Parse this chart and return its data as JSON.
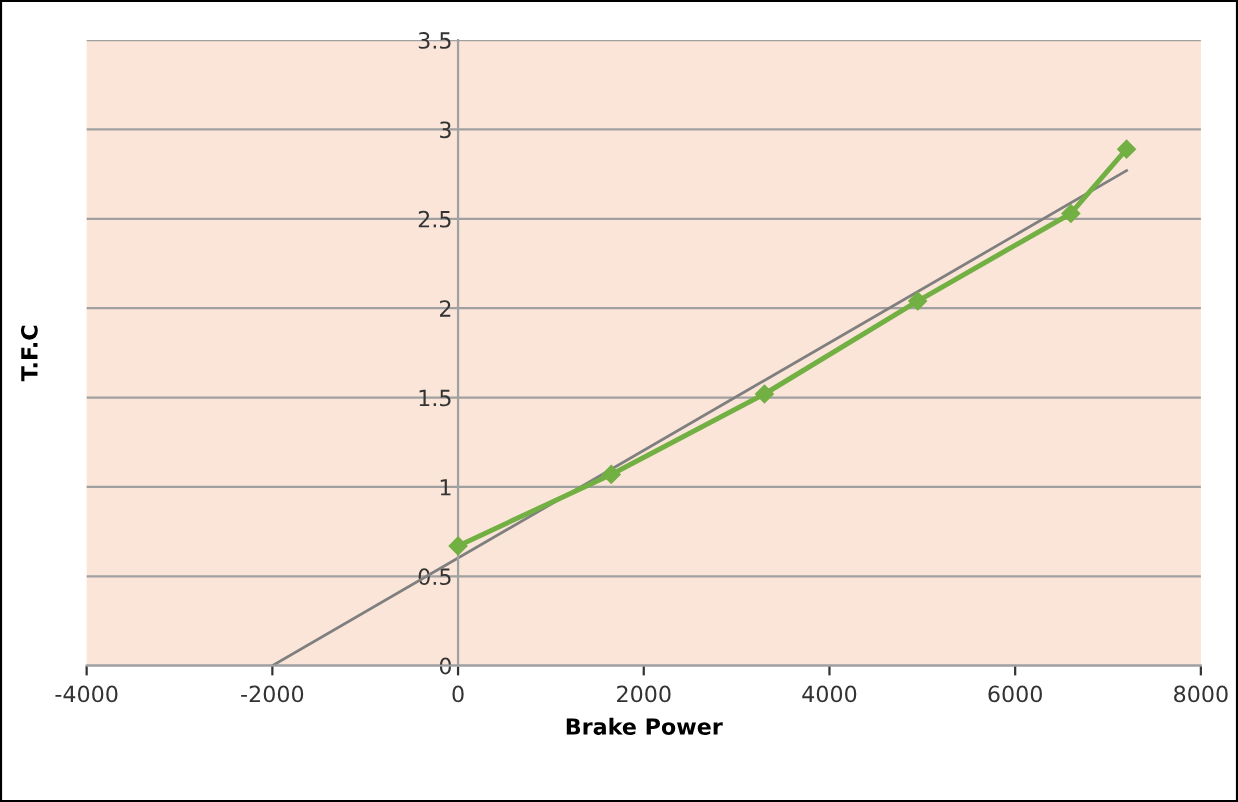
{
  "chart_data": {
    "type": "line",
    "xlabel": "Brake Power",
    "ylabel": "T.F.C",
    "series": [
      {
        "color": "#72b043",
        "marker": "diamond",
        "x": [
          0,
          1650,
          3300,
          4950,
          6600,
          7200
        ],
        "values": [
          0.67,
          1.07,
          1.52,
          2.04,
          2.53,
          2.89
        ]
      },
      {
        "color": "#7f7f7f",
        "marker": "none",
        "x": [
          -2000,
          7200
        ],
        "values": [
          0,
          2.77
        ]
      }
    ],
    "xlim": [
      -4000,
      8000
    ],
    "xticks": [
      -4000,
      -2000,
      0,
      2000,
      4000,
      6000,
      8000
    ],
    "ylim": [
      0,
      3.5
    ],
    "yticks": [
      0,
      0.5,
      1,
      1.5,
      2,
      2.5,
      3,
      3.5
    ],
    "grid": "y",
    "legend": false
  }
}
